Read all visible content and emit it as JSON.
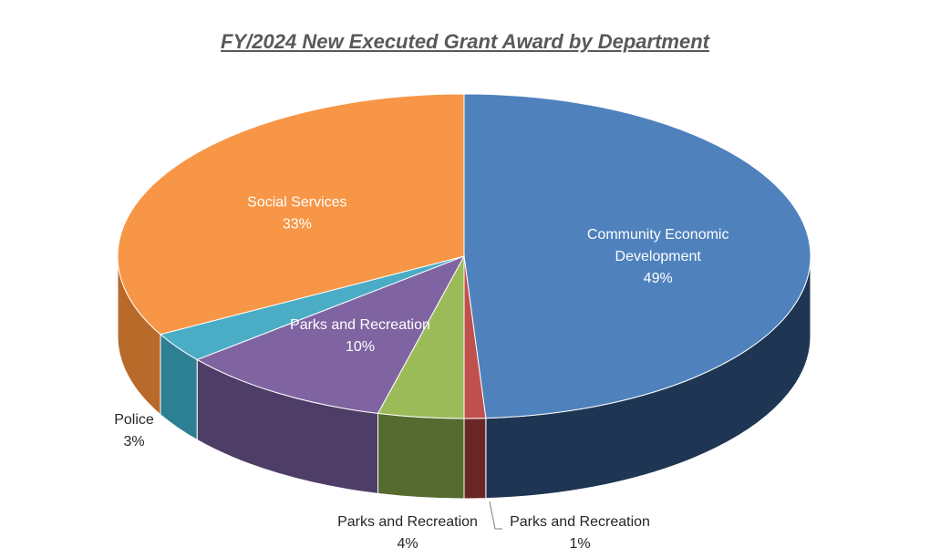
{
  "chart_data": {
    "type": "pie",
    "title": "FY/2024 New Executed Grant Award by Department",
    "slices": [
      {
        "label": "Community Economic Development",
        "label_lines": [
          "Community Economic",
          "Development"
        ],
        "value": 49,
        "value_label": "49%",
        "color": "#4f81bd",
        "side_color": "#1f3554",
        "label_color": "#ffffff"
      },
      {
        "label": "Parks and Recreation",
        "label_lines": [
          "Parks and Recreation"
        ],
        "value": 1,
        "value_label": "1%",
        "color": "#c0504d",
        "side_color": "#6a2624",
        "label_color": "#262626"
      },
      {
        "label": "Parks and Recreation",
        "label_lines": [
          "Parks and Recreation"
        ],
        "value": 4,
        "value_label": "4%",
        "color": "#9bbb59",
        "side_color": "#556b30",
        "label_color": "#262626"
      },
      {
        "label": "Parks and Recreation",
        "label_lines": [
          "Parks and Recreation"
        ],
        "value": 10,
        "value_label": "10%",
        "color": "#8064a2",
        "side_color": "#4e3d66",
        "label_color": "#ffffff"
      },
      {
        "label": "Police",
        "label_lines": [
          "Police"
        ],
        "value": 3,
        "value_label": "3%",
        "color": "#4bacc6",
        "side_color": "#2d7f94",
        "label_color": "#262626"
      },
      {
        "label": "Social Services",
        "label_lines": [
          "Social Services"
        ],
        "value": 33,
        "value_label": "33%",
        "color": "#f79646",
        "side_color": "#b86a2b",
        "label_color": "#ffffff"
      }
    ]
  }
}
